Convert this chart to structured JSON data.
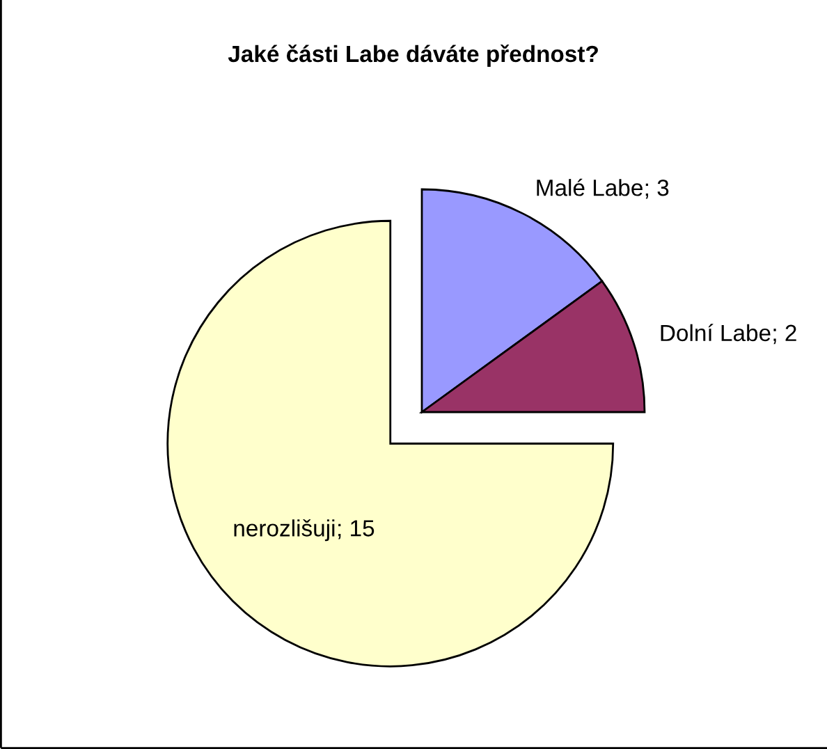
{
  "chart_data": {
    "type": "pie",
    "title": "Jaké části Labe dáváte přednost?",
    "categories": [
      "Malé Labe",
      "Dolní Labe",
      "nerozlišuji"
    ],
    "values": [
      3,
      2,
      15
    ],
    "value_labels": [
      "; 3",
      "; 2",
      "; 15"
    ],
    "colors": [
      "#9999ff",
      "#993366",
      "#ffffcc"
    ]
  }
}
